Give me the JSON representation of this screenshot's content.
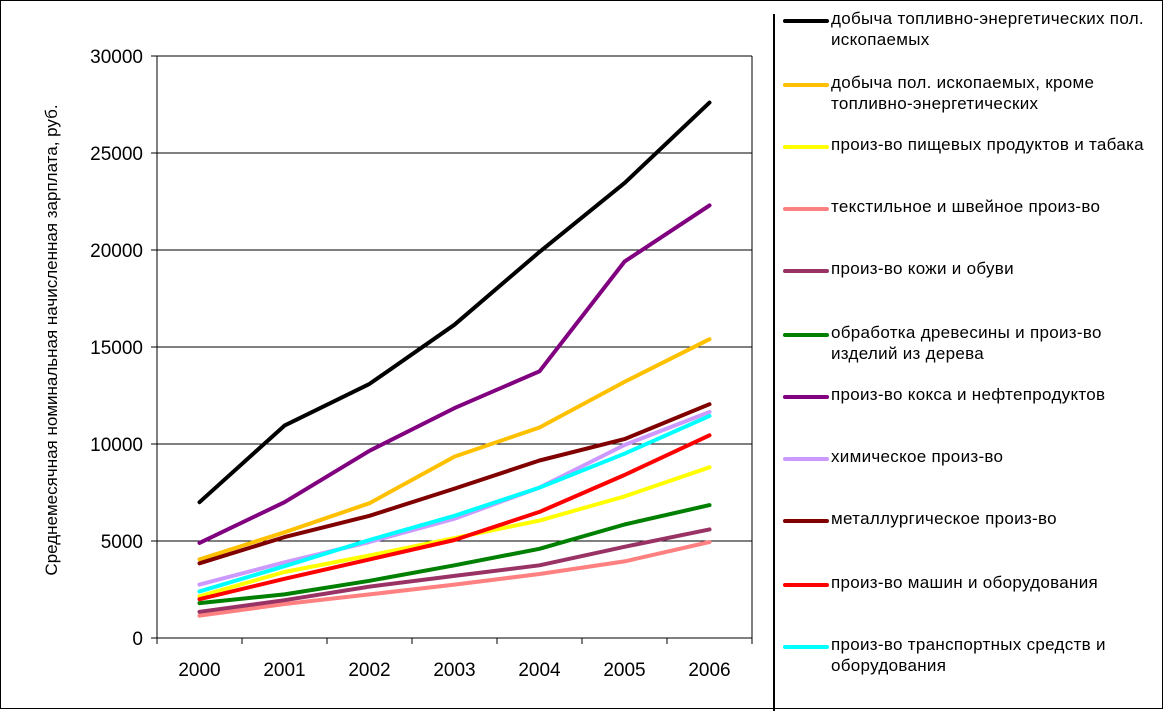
{
  "chart_data": {
    "type": "line",
    "categories": [
      "2000",
      "2001",
      "2002",
      "2003",
      "2004",
      "2005",
      "2006"
    ],
    "ylabel": "Среднемесячная номинальная начисленная зарплата, руб.",
    "xlabel": "",
    "ylim": [
      0,
      30000
    ],
    "yticks": [
      "0",
      "5000",
      "10000",
      "15000",
      "20000",
      "25000",
      "30000"
    ],
    "grid": "horizontal",
    "legend_position": "right",
    "series": [
      {
        "name": "добыча топливно-энергетических пол. ископаемых",
        "color": "#000000",
        "values": [
          7000,
          10950,
          13100,
          16150,
          19900,
          23450,
          27600
        ]
      },
      {
        "name": "добыча пол. ископаемых, кроме топливно-энергетических",
        "color": "#FFC000",
        "values": [
          4050,
          5450,
          6950,
          9350,
          10850,
          13200,
          15400
        ]
      },
      {
        "name": "произ-во пищевых продуктов и табака",
        "color": "#FFFF00",
        "values": [
          2150,
          3400,
          4250,
          5150,
          6050,
          7300,
          8800
        ]
      },
      {
        "name": "текстильное и швейное произ-во",
        "color": "#FF8080",
        "values": [
          1150,
          1750,
          2250,
          2750,
          3300,
          3950,
          4950
        ]
      },
      {
        "name": "произ-во кожи и обуви",
        "color": "#993366",
        "values": [
          1350,
          1950,
          2650,
          3200,
          3750,
          4700,
          5600
        ]
      },
      {
        "name": "обработка древесины и произ-во изделий из дерева",
        "color": "#008000",
        "values": [
          1800,
          2250,
          2950,
          3750,
          4600,
          5850,
          6850
        ]
      },
      {
        "name": "произ-во кокса и нефтепродуктов",
        "color": "#800080",
        "values": [
          4900,
          7000,
          9650,
          11850,
          13750,
          19400,
          22300
        ]
      },
      {
        "name": "химическое произ-во",
        "color": "#CC99FF",
        "values": [
          2750,
          3900,
          4950,
          6150,
          7750,
          9950,
          11650
        ]
      },
      {
        "name": "металлургическое произ-во",
        "color": "#800000",
        "values": [
          3850,
          5200,
          6300,
          7700,
          9150,
          10250,
          12050
        ]
      },
      {
        "name": "произ-во машин и оборудования",
        "color": "#FF0000",
        "values": [
          2000,
          3050,
          4050,
          5050,
          6500,
          8400,
          10450
        ]
      },
      {
        "name": "произ-во транспортных средств и оборудования",
        "color": "#00FFFF",
        "values": [
          2400,
          3700,
          5050,
          6300,
          7750,
          9500,
          11450
        ]
      }
    ]
  }
}
